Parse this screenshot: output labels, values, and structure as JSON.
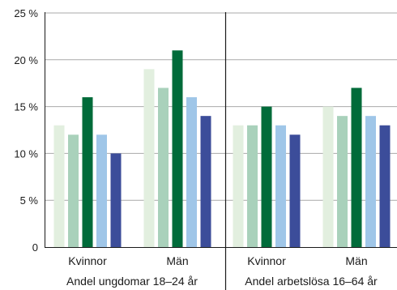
{
  "chart_data": {
    "type": "bar",
    "ylim": [
      0,
      25
    ],
    "yticks": [
      "0",
      "5 %",
      "10 %",
      "15 %",
      "20 %",
      "25 %"
    ],
    "ytick_values": [
      0,
      5,
      10,
      15,
      20,
      25
    ],
    "grid": true,
    "colors": [
      "#e2efdf",
      "#a9d1bb",
      "#006b3a",
      "#9fc6e8",
      "#3c4d9a"
    ],
    "panels": [
      {
        "label": "Andel ungdomar 18–24 år",
        "categories": [
          "Kvinnor",
          "Män"
        ],
        "groups": [
          [
            13,
            12,
            16,
            12,
            10
          ],
          [
            19,
            17,
            21,
            16,
            14
          ]
        ]
      },
      {
        "label": "Andel arbetslösa 16–64 år",
        "categories": [
          "Kvinnor",
          "Män"
        ],
        "groups": [
          [
            13,
            13,
            15,
            13,
            12
          ],
          [
            15,
            14,
            17,
            14,
            13
          ]
        ]
      }
    ]
  }
}
